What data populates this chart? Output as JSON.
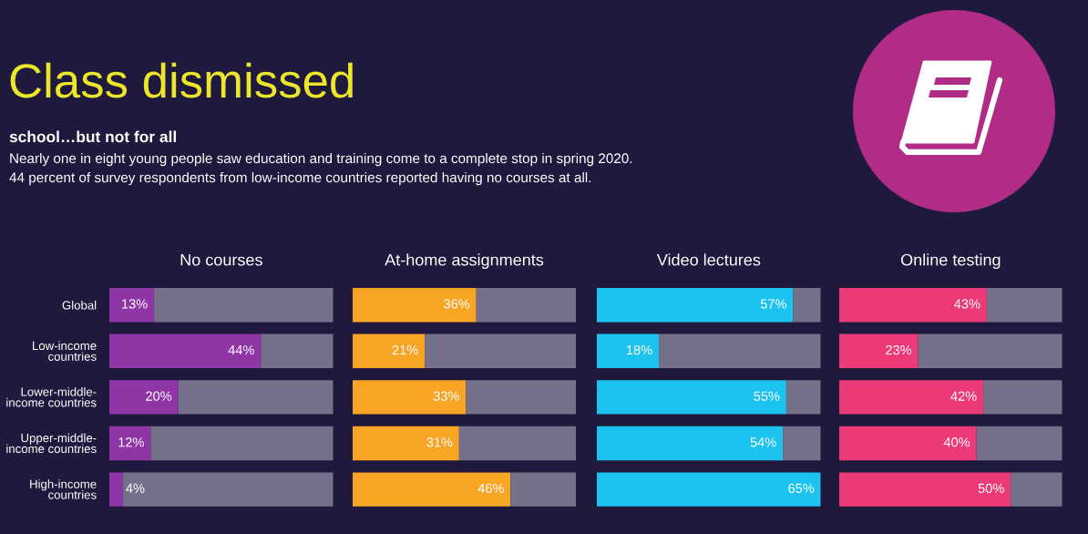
{
  "chart_data": [
    {
      "type": "other",
      "title": "Class dismissed",
      "subtitle": "school…but not for all",
      "annotations": [
        "Nearly one in eight young people saw education and training come to a complete stop in spring 2020.",
        "44 percent of survey respondents from low-income countries reported having no courses at all."
      ]
    },
    {
      "type": "bar",
      "orientation": "horizontal",
      "stacked": true,
      "title": "No courses",
      "categories": [
        "Global",
        "Low-income\ncountries",
        "Lower-middle-\nincome countries",
        "Upper-middle-\nincome countries",
        "High-income\ncountries"
      ],
      "series": [
        {
          "color": "#8f35a5",
          "values": [
            13,
            44,
            20,
            12,
            4
          ],
          "value_labels": [
            "13%",
            "44%",
            "20%",
            "12%",
            "4%"
          ]
        },
        {
          "color": "#75718b",
          "values": [
            52,
            21,
            45,
            53,
            61
          ]
        }
      ],
      "xlim": [
        0,
        65
      ],
      "tick_labels": "y"
    },
    {
      "type": "bar",
      "orientation": "horizontal",
      "stacked": true,
      "title": "At-home assignments",
      "categories": [
        null,
        null,
        null,
        null,
        null
      ],
      "series": [
        {
          "color": "#f8a526",
          "values": [
            36,
            21,
            33,
            31,
            46
          ],
          "value_labels": [
            "36%",
            "21%",
            "33%",
            "31%",
            "46%"
          ]
        },
        {
          "color": "#75718b",
          "values": [
            29,
            44,
            32,
            34,
            19
          ]
        }
      ],
      "xlim": [
        0,
        65
      ]
    },
    {
      "type": "bar",
      "orientation": "horizontal",
      "stacked": true,
      "title": "Video lectures",
      "categories": [
        null,
        null,
        null,
        null,
        null
      ],
      "series": [
        {
          "color": "#1cc3ef",
          "values": [
            57,
            18,
            55,
            54,
            65
          ],
          "value_labels": [
            "57%",
            "18%",
            "55%",
            "54%",
            "65%"
          ]
        },
        {
          "color": "#75718b",
          "values": [
            8,
            47,
            10,
            11,
            0
          ]
        }
      ],
      "xlim": [
        0,
        65
      ]
    },
    {
      "type": "bar",
      "orientation": "horizontal",
      "stacked": true,
      "title": "Online testing",
      "categories": [
        null,
        null,
        null,
        null,
        null
      ],
      "series": [
        {
          "color": "#ec3a78",
          "values": [
            43,
            23,
            42,
            40,
            50
          ],
          "value_labels": [
            "43%",
            "23%",
            "42%",
            "40%",
            "50%"
          ]
        },
        {
          "color": "#75718b",
          "values": [
            22,
            42,
            23,
            25,
            15
          ]
        }
      ],
      "xlim": [
        0,
        65
      ]
    }
  ]
}
